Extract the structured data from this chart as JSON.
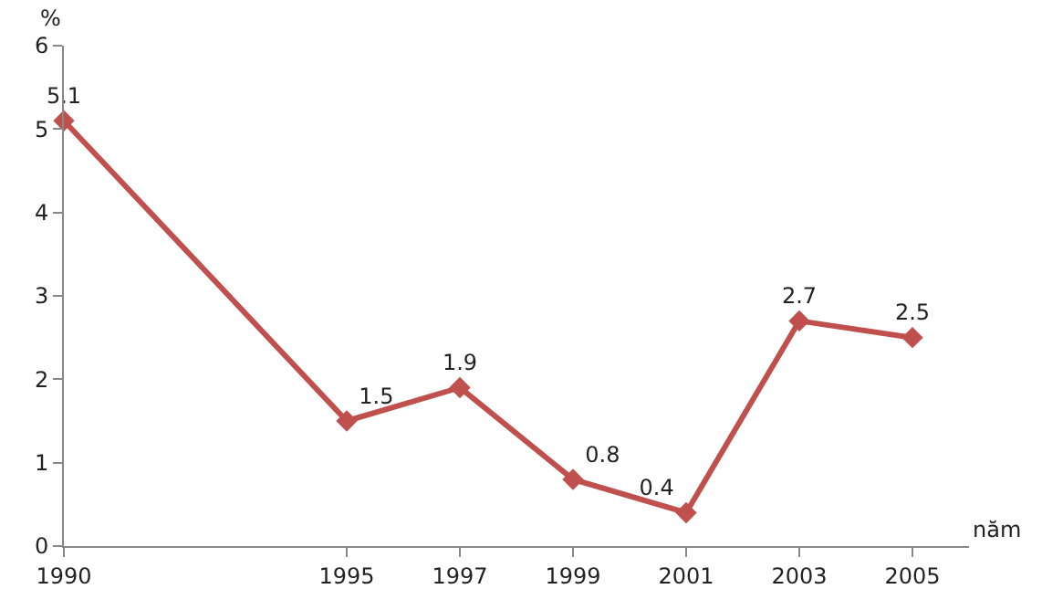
{
  "chart_data": {
    "type": "line",
    "xlabel": "năm",
    "ylabel": "%",
    "x": [
      1990,
      1995,
      1997,
      1999,
      2001,
      2003,
      2005
    ],
    "series": [
      {
        "color": "#c0504d",
        "values": [
          5.1,
          1.5,
          1.9,
          0.8,
          0.4,
          2.7,
          2.5
        ]
      }
    ],
    "xlim": [
      1990,
      2006
    ],
    "xticks": [
      1990,
      1995,
      1997,
      1999,
      2001,
      2003,
      2005
    ],
    "ylim": [
      0,
      6
    ],
    "yticks": [
      0,
      1,
      2,
      3,
      4,
      5,
      6
    ],
    "marker": "diamond",
    "line_style": "solid",
    "data_labels": true,
    "legend": false
  }
}
